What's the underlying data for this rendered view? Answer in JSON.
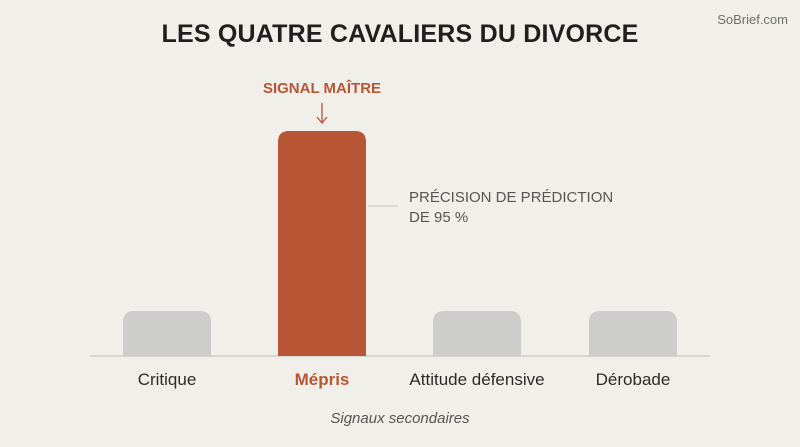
{
  "watermark": "SoBrief.com",
  "chart_data": {
    "type": "bar",
    "title": "LES QUATRE CAVALIERS DU DIVORCE",
    "categories": [
      "Critique",
      "Mépris",
      "Attitude défensive",
      "Dérobade"
    ],
    "values": [
      1,
      5,
      1,
      1
    ],
    "highlight_index": 1,
    "highlight_label": "SIGNAL MAÎTRE",
    "annotation": [
      "PRÉCISION DE PRÉDICTION",
      "DE 95 %"
    ],
    "footnote": "Signaux secondaires",
    "ylim": [
      0,
      5
    ],
    "grid": false,
    "colors": {
      "highlight": "#B85535",
      "default": "#CDCDCB",
      "baseline": "#C8C8C4",
      "label": "#2B2B2B",
      "annotation": "#555555"
    }
  }
}
